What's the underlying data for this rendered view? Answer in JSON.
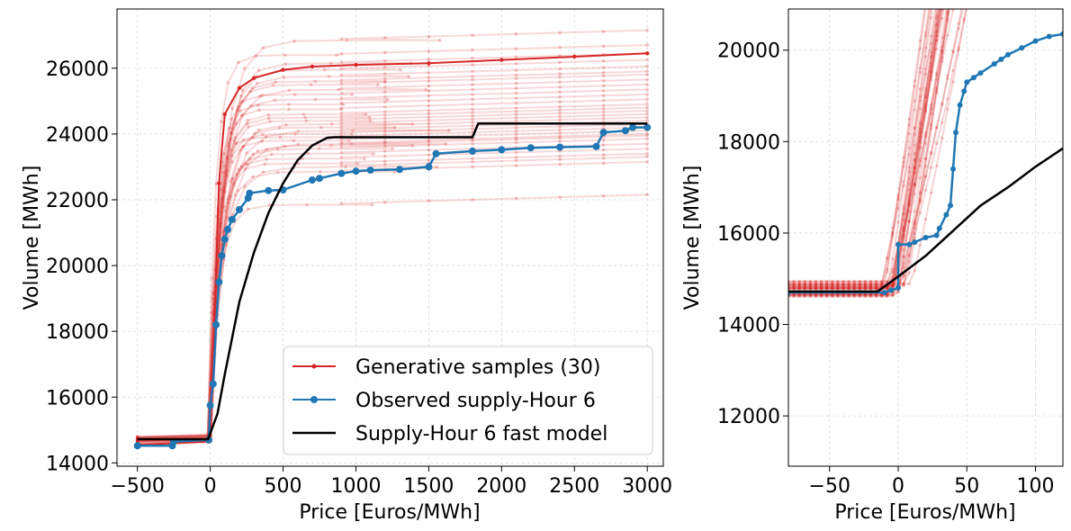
{
  "chart_data": [
    {
      "type": "line",
      "xlabel": "Price [Euros/MWh]",
      "ylabel": "Volume [MWh]",
      "xlim": [
        -640,
        3110
      ],
      "ylim": [
        13900,
        27800
      ],
      "xticks": [
        -500,
        0,
        500,
        1000,
        1500,
        2000,
        2500,
        3000
      ],
      "xtick_labels": [
        "−500",
        "0",
        "500",
        "1000",
        "1500",
        "2000",
        "2500",
        "3000"
      ],
      "yticks": [
        14000,
        16000,
        18000,
        20000,
        22000,
        24000,
        26000
      ],
      "ytick_labels": [
        "14000",
        "16000",
        "18000",
        "20000",
        "22000",
        "24000",
        "26000"
      ],
      "grid": true,
      "legend_position": "lower-right",
      "legend": [
        {
          "label": "Generative samples (30)",
          "color": "#d62728",
          "marker": "dot-small"
        },
        {
          "label": "Observed supply-Hour 6",
          "color": "#1f77b4",
          "marker": "dot"
        },
        {
          "label": "Supply-Hour 6 fast model",
          "color": "#000000",
          "marker": "none"
        }
      ],
      "series": [
        {
          "name": "Generative samples (30)",
          "color": "#d62728",
          "sample_count": 30,
          "sample_plateaus": [
            26450,
            27150,
            26700,
            26250,
            26050,
            25900,
            25800,
            25650,
            25500,
            25350,
            25200,
            25050,
            24900,
            24800,
            24700,
            24600,
            24500,
            24400,
            24300,
            24200,
            24100,
            24000,
            23950,
            23850,
            23700,
            23550,
            23400,
            23300,
            23150,
            22150
          ],
          "highlighted_sample": {
            "x": [
              -500,
              -10,
              30,
              60,
              100,
              200,
              300,
              500,
              700,
              1000,
              1500,
              2000,
              2500,
              3000
            ],
            "y": [
              14550,
              14650,
              18500,
              22500,
              24600,
              25400,
              25700,
              25950,
              26050,
              26100,
              26150,
              26250,
              26350,
              26450
            ]
          }
        },
        {
          "name": "Observed supply-Hour 6",
          "color": "#1f77b4",
          "x": [
            -500,
            -260,
            -250,
            -10,
            0,
            20,
            40,
            60,
            80,
            100,
            120,
            150,
            200,
            260,
            270,
            400,
            500,
            700,
            750,
            900,
            1000,
            1100,
            1300,
            1500,
            1550,
            1800,
            2000,
            2200,
            2400,
            2650,
            2700,
            2850,
            2900,
            3000
          ],
          "y": [
            14520,
            14520,
            14650,
            14700,
            15750,
            16400,
            18200,
            19500,
            20300,
            20800,
            21100,
            21400,
            21700,
            22050,
            22200,
            22280,
            22300,
            22600,
            22650,
            22800,
            22870,
            22900,
            22920,
            23000,
            23400,
            23480,
            23520,
            23580,
            23600,
            23620,
            24050,
            24100,
            24200,
            24200
          ]
        },
        {
          "name": "Supply-Hour 6 fast model",
          "color": "#000000",
          "x": [
            -500,
            -15,
            50,
            100,
            200,
            300,
            400,
            500,
            600,
            700,
            800,
            850,
            1000,
            1500,
            1800,
            1840,
            3000
          ],
          "y": [
            14720,
            14720,
            15500,
            16700,
            18900,
            20400,
            21600,
            22500,
            23200,
            23650,
            23880,
            23900,
            23900,
            23900,
            23900,
            24320,
            24320
          ]
        }
      ]
    },
    {
      "type": "line",
      "xlabel": "Price [Euros/MWh]",
      "ylabel": "Volume [MWh]",
      "xlim": [
        -80,
        120
      ],
      "ylim": [
        10900,
        20900
      ],
      "xticks": [
        -50,
        0,
        50,
        100
      ],
      "xtick_labels": [
        "−50",
        "0",
        "50",
        "100"
      ],
      "yticks": [
        12000,
        14000,
        16000,
        18000,
        20000
      ],
      "ytick_labels": [
        "12000",
        "14000",
        "16000",
        "18000",
        "20000"
      ],
      "grid": true,
      "series": [
        {
          "name": "Generative samples (30)",
          "color": "#d62728",
          "sample_count": 30
        },
        {
          "name": "Observed supply-Hour 6",
          "color": "#1f77b4",
          "x": [
            -80,
            -10,
            -5,
            0,
            0,
            8,
            12,
            20,
            28,
            30,
            35,
            38,
            40,
            42,
            45,
            48,
            50,
            55,
            60,
            70,
            75,
            80,
            90,
            100,
            110,
            120
          ],
          "y": [
            14700,
            14700,
            14750,
            14800,
            15750,
            15750,
            15800,
            15900,
            15950,
            16100,
            16400,
            16600,
            17400,
            18200,
            18800,
            19100,
            19300,
            19400,
            19500,
            19700,
            19800,
            19900,
            20050,
            20200,
            20300,
            20350
          ]
        },
        {
          "name": "Supply-Hour 6 fast model",
          "color": "#000000",
          "x": [
            -80,
            -15,
            0,
            20,
            40,
            60,
            80,
            100,
            120
          ],
          "y": [
            14720,
            14720,
            15050,
            15500,
            16050,
            16600,
            17000,
            17450,
            17850
          ]
        }
      ]
    }
  ]
}
